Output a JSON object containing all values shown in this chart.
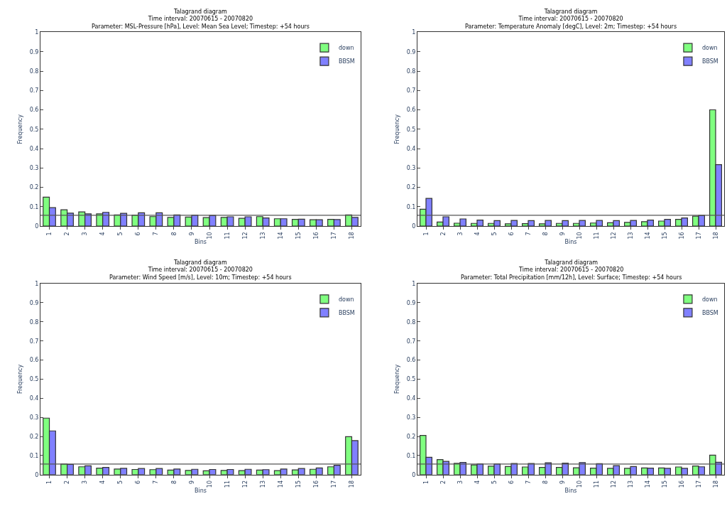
{
  "chart_data": [
    {
      "type": "bar",
      "title": "Talagrand diagram",
      "subtitle": "Time interval: 20070615 - 20070820\nParameter: MSL-Pressure [hPa], Level: Mean Sea Level; Timestep: +54 hours",
      "xlabel": "Bins",
      "ylabel": "Frequency",
      "categories": [
        "1",
        "2",
        "3",
        "4",
        "5",
        "6",
        "7",
        "8",
        "9",
        "10",
        "11",
        "12",
        "13",
        "14",
        "15",
        "16",
        "17",
        "18"
      ],
      "ylim": [
        0,
        1
      ],
      "yticks": [
        0,
        0.1,
        0.2,
        0.3,
        0.4,
        0.5,
        0.6,
        0.7,
        0.8,
        0.9,
        1
      ],
      "legend": "top right",
      "series": [
        {
          "name": "down",
          "color": "#80ff80",
          "values": [
            0.149,
            0.084,
            0.073,
            0.063,
            0.058,
            0.057,
            0.049,
            0.045,
            0.047,
            0.044,
            0.045,
            0.04,
            0.049,
            0.038,
            0.035,
            0.033,
            0.035,
            0.058
          ]
        },
        {
          "name": "BBSM",
          "color": "#8080ff",
          "values": [
            0.095,
            0.067,
            0.063,
            0.071,
            0.066,
            0.069,
            0.069,
            0.058,
            0.057,
            0.055,
            0.048,
            0.048,
            0.042,
            0.038,
            0.036,
            0.033,
            0.034,
            0.045
          ]
        }
      ],
      "ref_lines": [
        {
          "axis": "y",
          "value": 0.0556,
          "color": "#555555"
        }
      ]
    },
    {
      "type": "bar",
      "title": "Talagrand diagram",
      "subtitle": "Time interval: 20070615 - 20070820\nParameter: Temperature Anomaly [degC], Level: 2m; Timestep: +54 hours",
      "xlabel": "Bins",
      "ylabel": "Frequency",
      "categories": [
        "1",
        "2",
        "3",
        "4",
        "5",
        "6",
        "7",
        "8",
        "9",
        "10",
        "11",
        "12",
        "13",
        "14",
        "15",
        "16",
        "17",
        "18"
      ],
      "ylim": [
        0,
        1
      ],
      "yticks": [
        0,
        0.1,
        0.2,
        0.3,
        0.4,
        0.5,
        0.6,
        0.7,
        0.8,
        0.9,
        1
      ],
      "legend": "top right",
      "series": [
        {
          "name": "down",
          "color": "#80ff80",
          "values": [
            0.087,
            0.021,
            0.015,
            0.014,
            0.014,
            0.012,
            0.013,
            0.012,
            0.014,
            0.014,
            0.016,
            0.017,
            0.019,
            0.023,
            0.026,
            0.035,
            0.051,
            0.6
          ]
        },
        {
          "name": "BBSM",
          "color": "#8080ff",
          "values": [
            0.143,
            0.048,
            0.037,
            0.031,
            0.028,
            0.029,
            0.028,
            0.029,
            0.028,
            0.029,
            0.029,
            0.028,
            0.029,
            0.031,
            0.035,
            0.042,
            0.055,
            0.317
          ]
        }
      ],
      "ref_lines": [
        {
          "axis": "y",
          "value": 0.0556,
          "color": "#555555"
        }
      ]
    },
    {
      "type": "bar",
      "title": "Talagrand diagram",
      "subtitle": "Time interval: 20070615 - 20070820\nParameter: Wind Speed [m/s], Level: 10m; Timestep: +54 hours",
      "xlabel": "Bins",
      "ylabel": "Frequency",
      "categories": [
        "1",
        "2",
        "3",
        "4",
        "5",
        "6",
        "7",
        "8",
        "9",
        "10",
        "11",
        "12",
        "13",
        "14",
        "15",
        "16",
        "17",
        "18"
      ],
      "ylim": [
        0,
        1
      ],
      "yticks": [
        0,
        0.1,
        0.2,
        0.3,
        0.4,
        0.5,
        0.6,
        0.7,
        0.8,
        0.9,
        1
      ],
      "legend": "top right",
      "series": [
        {
          "name": "down",
          "color": "#80ff80",
          "values": [
            0.296,
            0.055,
            0.041,
            0.034,
            0.029,
            0.027,
            0.026,
            0.024,
            0.022,
            0.02,
            0.022,
            0.021,
            0.024,
            0.021,
            0.025,
            0.028,
            0.041,
            0.199
          ]
        },
        {
          "name": "BBSM",
          "color": "#8080ff",
          "values": [
            0.229,
            0.053,
            0.046,
            0.038,
            0.033,
            0.032,
            0.032,
            0.029,
            0.028,
            0.027,
            0.027,
            0.028,
            0.026,
            0.029,
            0.032,
            0.035,
            0.049,
            0.178
          ]
        }
      ],
      "ref_lines": [
        {
          "axis": "y",
          "value": 0.0556,
          "color": "#555555"
        }
      ]
    },
    {
      "type": "bar",
      "title": "Talagrand diagram",
      "subtitle": "Time interval: 20070615 - 20070820\nParameter: Total Precipitation [mm/12h], Level: Surface; Timestep: +54 hours",
      "xlabel": "Bins",
      "ylabel": "Frequency",
      "categories": [
        "1",
        "2",
        "3",
        "4",
        "5",
        "6",
        "7",
        "8",
        "9",
        "10",
        "11",
        "12",
        "13",
        "14",
        "15",
        "16",
        "17",
        "18"
      ],
      "ylim": [
        0,
        1
      ],
      "yticks": [
        0,
        0.1,
        0.2,
        0.3,
        0.4,
        0.5,
        0.6,
        0.7,
        0.8,
        0.9,
        1
      ],
      "legend": "top right",
      "series": [
        {
          "name": "down",
          "color": "#80ff80",
          "values": [
            0.205,
            0.079,
            0.059,
            0.051,
            0.044,
            0.042,
            0.04,
            0.038,
            0.038,
            0.036,
            0.034,
            0.033,
            0.033,
            0.035,
            0.035,
            0.04,
            0.045,
            0.102
          ]
        },
        {
          "name": "BBSM",
          "color": "#8080ff",
          "values": [
            0.091,
            0.069,
            0.064,
            0.056,
            0.056,
            0.058,
            0.058,
            0.062,
            0.06,
            0.063,
            0.057,
            0.047,
            0.042,
            0.034,
            0.033,
            0.033,
            0.041,
            0.065
          ]
        }
      ],
      "ref_lines": [
        {
          "axis": "y",
          "value": 0.0556,
          "color": "#555555"
        }
      ]
    }
  ]
}
